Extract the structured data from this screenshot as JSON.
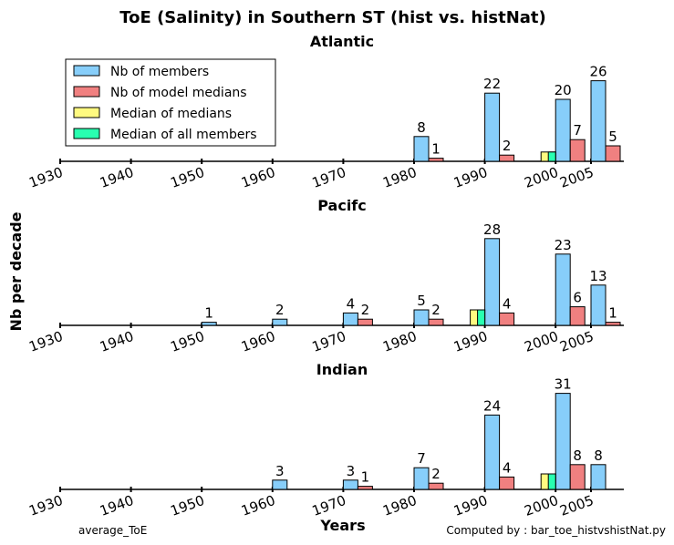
{
  "title": "ToE (Salinity) in Southern ST (hist vs. histNat)",
  "ylabel": "Nb per decade",
  "xlabel": "Years",
  "footer_left": "average_ToE",
  "footer_right": "Computed by : bar_toe_histvshistNat.py",
  "legend": [
    {
      "label": "Nb of members",
      "color": "#87cefa"
    },
    {
      "label": "Nb of model medians",
      "color": "#f08080"
    },
    {
      "label": "Median of medians",
      "color": "#fffa80"
    },
    {
      "label": "Median of all members",
      "color": "#28ffb0"
    }
  ],
  "chart_data": [
    {
      "type": "bar",
      "title": "Atlantic",
      "xticks": [
        "1930",
        "1940",
        "1950",
        "1960",
        "1970",
        "1980",
        "1990",
        "2000",
        "2005"
      ],
      "series": [
        {
          "name": "Nb of members",
          "color": "#87cefa",
          "bars": [
            {
              "x": 1980,
              "value": 8
            },
            {
              "x": 1990,
              "value": 22
            },
            {
              "x": 2000,
              "value": 20
            },
            {
              "x": 2005,
              "value": 26
            }
          ]
        },
        {
          "name": "Nb of model medians",
          "color": "#f08080",
          "bars": [
            {
              "x": 1980,
              "value": 1
            },
            {
              "x": 1990,
              "value": 2
            },
            {
              "x": 2000,
              "value": 7
            },
            {
              "x": 2005,
              "value": 5
            }
          ]
        },
        {
          "name": "Median of medians",
          "color": "#fffa80",
          "bars": [
            {
              "x": 2000,
              "value": 3
            }
          ]
        },
        {
          "name": "Median of all members",
          "color": "#28ffb0",
          "bars": [
            {
              "x": 2000,
              "value": 3
            }
          ]
        }
      ]
    },
    {
      "type": "bar",
      "title": "Pacifc",
      "xticks": [
        "1930",
        "1940",
        "1950",
        "1960",
        "1970",
        "1980",
        "1990",
        "2000",
        "2005"
      ],
      "series": [
        {
          "name": "Nb of members",
          "color": "#87cefa",
          "bars": [
            {
              "x": 1950,
              "value": 1
            },
            {
              "x": 1960,
              "value": 2
            },
            {
              "x": 1970,
              "value": 4
            },
            {
              "x": 1980,
              "value": 5
            },
            {
              "x": 1990,
              "value": 28
            },
            {
              "x": 2000,
              "value": 23
            },
            {
              "x": 2005,
              "value": 13
            }
          ]
        },
        {
          "name": "Nb of model medians",
          "color": "#f08080",
          "bars": [
            {
              "x": 1970,
              "value": 2
            },
            {
              "x": 1980,
              "value": 2
            },
            {
              "x": 1990,
              "value": 4
            },
            {
              "x": 2000,
              "value": 6
            },
            {
              "x": 2005,
              "value": 1
            }
          ]
        },
        {
          "name": "Median of medians",
          "color": "#fffa80",
          "bars": [
            {
              "x": 1990,
              "value": 5
            }
          ]
        },
        {
          "name": "Median of all members",
          "color": "#28ffb0",
          "bars": [
            {
              "x": 1990,
              "value": 5
            }
          ]
        }
      ]
    },
    {
      "type": "bar",
      "title": "Indian",
      "xticks": [
        "1930",
        "1940",
        "1950",
        "1960",
        "1970",
        "1980",
        "1990",
        "2000",
        "2005"
      ],
      "series": [
        {
          "name": "Nb of members",
          "color": "#87cefa",
          "bars": [
            {
              "x": 1960,
              "value": 3
            },
            {
              "x": 1970,
              "value": 3
            },
            {
              "x": 1980,
              "value": 7
            },
            {
              "x": 1990,
              "value": 24
            },
            {
              "x": 2000,
              "value": 31
            },
            {
              "x": 2005,
              "value": 8
            }
          ]
        },
        {
          "name": "Nb of model medians",
          "color": "#f08080",
          "bars": [
            {
              "x": 1970,
              "value": 1
            },
            {
              "x": 1980,
              "value": 2
            },
            {
              "x": 1990,
              "value": 4
            },
            {
              "x": 2000,
              "value": 8
            }
          ]
        },
        {
          "name": "Median of medians",
          "color": "#fffa80",
          "bars": [
            {
              "x": 2000,
              "value": 5
            }
          ]
        },
        {
          "name": "Median of all members",
          "color": "#28ffb0",
          "bars": [
            {
              "x": 2000,
              "value": 5
            }
          ]
        }
      ]
    }
  ]
}
